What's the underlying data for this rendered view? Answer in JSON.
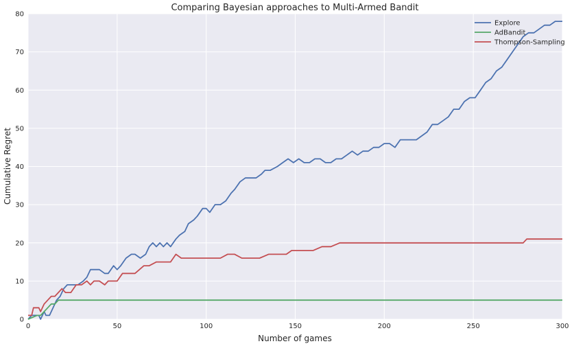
{
  "chart_data": {
    "type": "line",
    "title": "Comparing Bayesian approaches to Multi-Armed Bandit",
    "xlabel": "Number of games",
    "ylabel": "Cumulative Regret",
    "xlim": [
      0,
      300
    ],
    "ylim": [
      0,
      80
    ],
    "xticks": [
      0,
      50,
      100,
      150,
      200,
      250,
      300
    ],
    "yticks": [
      0,
      10,
      20,
      30,
      40,
      50,
      60,
      70,
      80
    ],
    "grid": true,
    "legend_position": "top-right",
    "series": [
      {
        "name": "Explore",
        "color": "#4c72b0",
        "x": [
          0,
          2,
          4,
          6,
          7,
          9,
          10,
          12,
          14,
          16,
          18,
          20,
          22,
          25,
          28,
          31,
          33,
          35,
          37,
          40,
          43,
          45,
          48,
          50,
          52,
          55,
          58,
          60,
          63,
          66,
          68,
          70,
          72,
          74,
          76,
          78,
          80,
          83,
          85,
          88,
          90,
          93,
          95,
          98,
          100,
          102,
          105,
          108,
          111,
          114,
          116,
          119,
          122,
          125,
          128,
          131,
          133,
          136,
          140,
          143,
          146,
          149,
          152,
          155,
          158,
          161,
          164,
          167,
          170,
          173,
          176,
          179,
          182,
          185,
          188,
          191,
          194,
          197,
          200,
          203,
          206,
          209,
          212,
          215,
          218,
          221,
          224,
          227,
          230,
          233,
          236,
          239,
          242,
          245,
          248,
          251,
          254,
          257,
          260,
          263,
          266,
          269,
          272,
          275,
          278,
          281,
          284,
          287,
          290,
          293,
          296,
          300
        ],
        "values": [
          0,
          1,
          1,
          1,
          0,
          2,
          1,
          1,
          3,
          5,
          6,
          8,
          9,
          9,
          9,
          10,
          11,
          13,
          13,
          13,
          12,
          12,
          14,
          13,
          14,
          16,
          17,
          17,
          16,
          17,
          19,
          20,
          19,
          20,
          19,
          20,
          19,
          21,
          22,
          23,
          25,
          26,
          27,
          29,
          29,
          28,
          30,
          30,
          31,
          33,
          34,
          36,
          37,
          37,
          37,
          38,
          39,
          39,
          40,
          41,
          42,
          41,
          42,
          41,
          41,
          42,
          42,
          41,
          41,
          42,
          42,
          43,
          44,
          43,
          44,
          44,
          45,
          45,
          46,
          46,
          45,
          47,
          47,
          47,
          47,
          48,
          49,
          51,
          51,
          52,
          53,
          55,
          55,
          57,
          58,
          58,
          60,
          62,
          63,
          65,
          66,
          68,
          70,
          72,
          74,
          75,
          75,
          76,
          77,
          77,
          78,
          78
        ]
      },
      {
        "name": "AdBandit",
        "color": "#55a868",
        "x": [
          0,
          5,
          7,
          9,
          11,
          13,
          15,
          17,
          20,
          300
        ],
        "values": [
          0,
          1,
          1,
          2,
          3,
          4,
          4,
          5,
          5,
          5
        ]
      },
      {
        "name": "Thompson-Sampling",
        "color": "#c44e52",
        "x": [
          0,
          2,
          3,
          6,
          7,
          9,
          11,
          13,
          15,
          17,
          19,
          21,
          24,
          27,
          30,
          33,
          35,
          37,
          40,
          43,
          45,
          50,
          53,
          57,
          60,
          65,
          68,
          72,
          75,
          80,
          83,
          86,
          90,
          95,
          100,
          105,
          108,
          112,
          116,
          120,
          125,
          130,
          135,
          140,
          145,
          148,
          152,
          156,
          160,
          165,
          170,
          175,
          180,
          190,
          200,
          210,
          220,
          230,
          240,
          250,
          260,
          270,
          278,
          280,
          290,
          300
        ],
        "values": [
          1,
          1,
          3,
          3,
          2,
          4,
          5,
          6,
          6,
          7,
          8,
          7,
          7,
          9,
          9,
          10,
          9,
          10,
          10,
          9,
          10,
          10,
          12,
          12,
          12,
          14,
          14,
          15,
          15,
          15,
          17,
          16,
          16,
          16,
          16,
          16,
          16,
          17,
          17,
          16,
          16,
          16,
          17,
          17,
          17,
          18,
          18,
          18,
          18,
          19,
          19,
          20,
          20,
          20,
          20,
          20,
          20,
          20,
          20,
          20,
          20,
          20,
          20,
          21,
          21,
          21
        ]
      }
    ]
  }
}
